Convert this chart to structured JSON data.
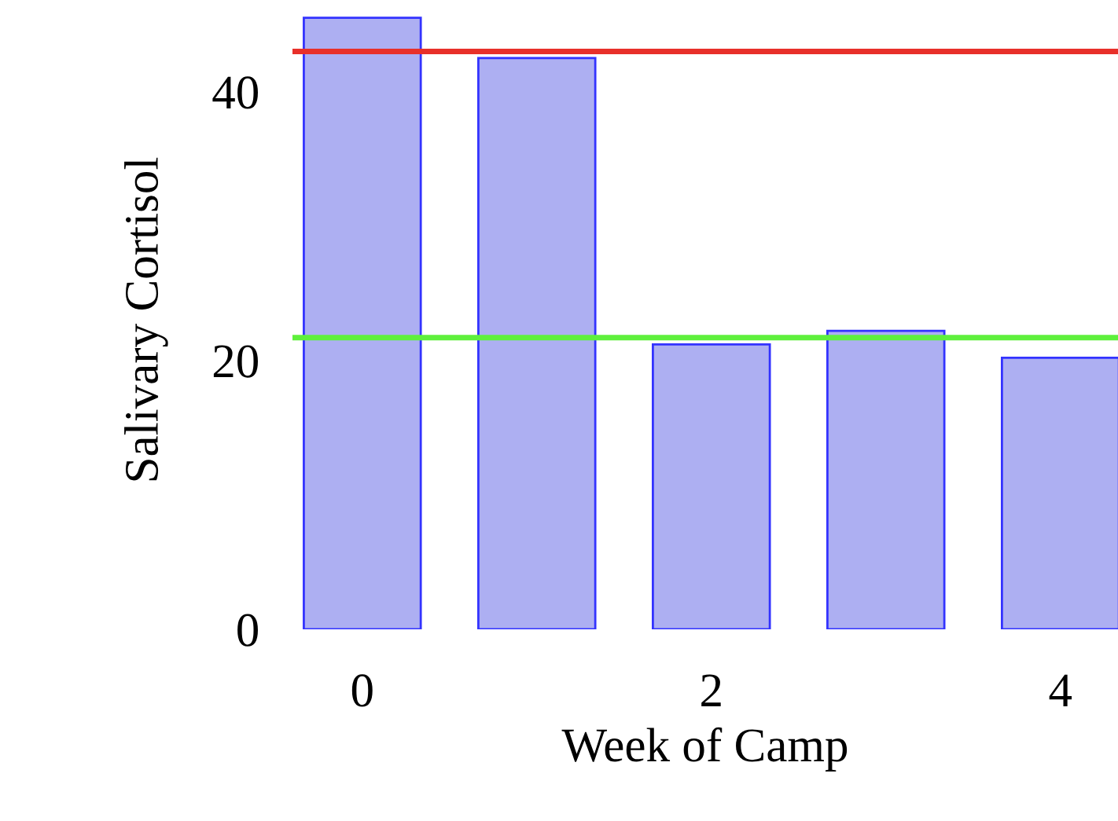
{
  "chart_data": {
    "type": "bar",
    "xlabel": "Week of Camp",
    "ylabel": "Salivary Cortisol",
    "x": [
      0,
      1,
      2,
      3,
      4
    ],
    "values": [
      45.5,
      42.5,
      21.2,
      22.2,
      20.2
    ],
    "color": "#adaff2",
    "xlim": [
      -0.4,
      4.33
    ],
    "xticks": [
      0,
      2,
      4
    ],
    "ylim": [
      0,
      46
    ],
    "yticks": [
      0,
      20,
      40
    ],
    "ref_lines": [
      {
        "axis": "y",
        "value": 43,
        "color": "#e8302a"
      },
      {
        "axis": "y",
        "value": 21.7,
        "color": "#5ef03c"
      }
    ],
    "grid": false
  }
}
